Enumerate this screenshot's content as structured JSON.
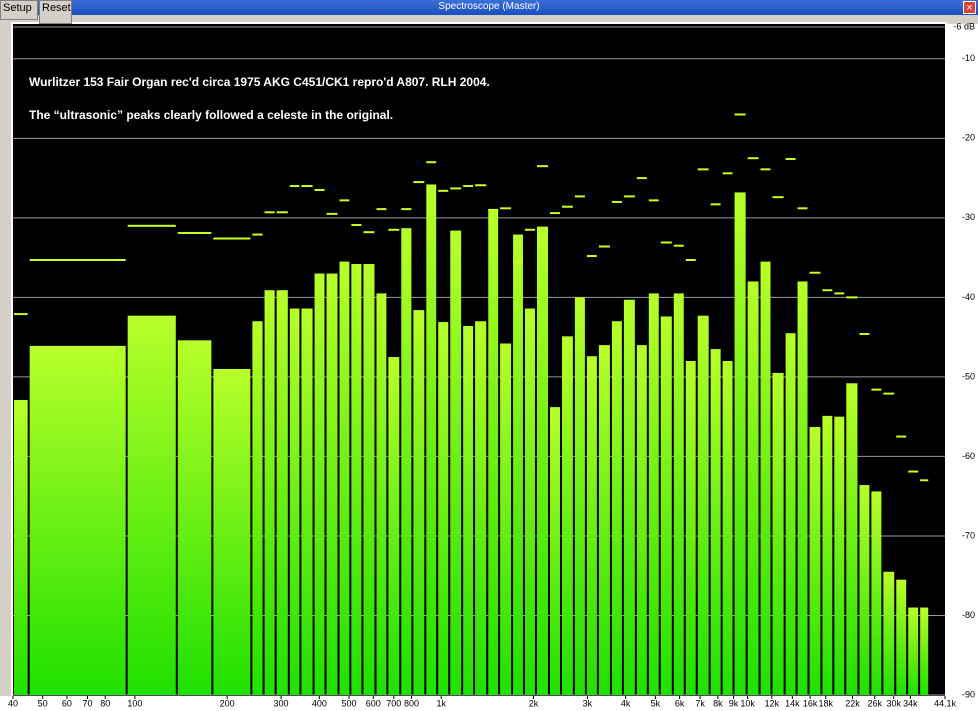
{
  "window": {
    "title": "Spectroscope (Master)",
    "buttons": [
      "Setup",
      "Reset"
    ]
  },
  "chart_data": {
    "type": "histogram",
    "annotations": [
      "Wurlitzer 153 Fair Organ rec'd circa 1975 AKG C451/CK1 repro'd A807. RLH 2004.",
      "The “ultrasonic” peaks clearly followed a celeste in the original."
    ],
    "bins": [
      40,
      45,
      94,
      137,
      179,
      240,
      263,
      288,
      318,
      347,
      383,
      419,
      462,
      505,
      553,
      610,
      667,
      735,
      805,
      887,
      970,
      1062,
      1170,
      1280,
      1413,
      1545,
      1703,
      1862,
      2038,
      2248,
      2460,
      2710,
      2966,
      3246,
      3580,
      3917,
      4318,
      4724,
      5168,
      5700,
      6237,
      6823,
      7520,
      8228,
      8998,
      9930,
      10940,
      11970,
      13210,
      14450,
      15810,
      17420,
      19050,
      20840,
      23010,
      25170,
      27540,
      30340,
      33190,
      36310,
      39170
    ],
    "values": [
      -52.9,
      -46.1,
      -42.3,
      -45.4,
      -49.0,
      -43.0,
      -39.1,
      -39.1,
      -41.4,
      -41.4,
      -37.0,
      -37.0,
      -35.5,
      -35.8,
      -35.8,
      -39.5,
      -47.5,
      -31.3,
      -41.6,
      -25.8,
      -43.1,
      -31.6,
      -43.6,
      -43.0,
      -28.9,
      -45.8,
      -32.1,
      -41.4,
      -31.1,
      -53.8,
      -44.9,
      -40.0,
      -47.4,
      -46.0,
      -43.0,
      -40.3,
      -46.0,
      -39.5,
      -42.4,
      -39.5,
      -48.0,
      -42.3,
      -46.5,
      -48.0,
      -26.8,
      -38.0,
      -35.5,
      -49.5,
      -44.5,
      -38.0,
      -56.3,
      -54.9,
      -55.0,
      -50.8,
      -63.6,
      -64.4,
      -74.5,
      -75.5,
      -79.0,
      -79.0
    ],
    "peak_values": [
      -42.1,
      -35.3,
      -31.0,
      -31.9,
      -32.6,
      -32.1,
      -29.3,
      -29.3,
      -26.0,
      -26.0,
      -26.5,
      -29.5,
      -27.8,
      -30.9,
      -31.8,
      -28.9,
      -31.5,
      -28.9,
      -25.5,
      -23.0,
      -26.6,
      -26.3,
      -26.0,
      -25.9,
      -29.0,
      -28.8,
      -35.5,
      -31.5,
      -23.5,
      -29.4,
      -28.6,
      -27.3,
      -34.8,
      -33.6,
      -28.0,
      -27.3,
      -25.0,
      -27.8,
      -33.1,
      -33.5,
      -35.3,
      -23.9,
      -28.3,
      -24.4,
      -17.0,
      -22.5,
      -23.9,
      -27.4,
      -22.6,
      -28.8,
      -36.9,
      -39.1,
      -39.5,
      -40.0,
      -44.6,
      -51.6,
      -52.1,
      -57.5,
      -61.9,
      -63.0
    ],
    "color_top": "#b8ff2a",
    "color_bottom": "#1fe000",
    "peak_color": "#c8ff1e",
    "x_scale": "log",
    "xlim": [
      40,
      44100
    ],
    "xticks": [
      40,
      50,
      60,
      70,
      80,
      100,
      200,
      300,
      400,
      500,
      600,
      700,
      800,
      {
        "value": 1000,
        "label": "1k"
      },
      {
        "value": 2000,
        "label": "2k"
      },
      {
        "value": 3000,
        "label": "3k"
      },
      {
        "value": 4000,
        "label": "4k"
      },
      {
        "value": 5000,
        "label": "5k"
      },
      {
        "value": 6000,
        "label": "6k"
      },
      {
        "value": 7000,
        "label": "7k"
      },
      {
        "value": 8000,
        "label": "8k"
      },
      {
        "value": 9000,
        "label": "9k"
      },
      {
        "value": 10000,
        "label": "10k"
      },
      {
        "value": 12000,
        "label": "12k"
      },
      {
        "value": 14000,
        "label": "14k"
      },
      {
        "value": 16000,
        "label": "16k"
      },
      {
        "value": 18000,
        "label": "18k"
      },
      {
        "value": 22000,
        "label": "22k"
      },
      {
        "value": 26000,
        "label": "26k"
      },
      {
        "value": 30000,
        "label": "30k"
      },
      {
        "value": 34000,
        "label": "34k"
      },
      {
        "value": 44100,
        "label": "44.1k"
      }
    ],
    "ylim": [
      -90,
      -6
    ],
    "yticks": [
      {
        "value": -6,
        "label": "-6 dB"
      },
      -10,
      -20,
      -30,
      -40,
      -50,
      -60,
      -70,
      -80,
      -90
    ],
    "grid": true
  }
}
